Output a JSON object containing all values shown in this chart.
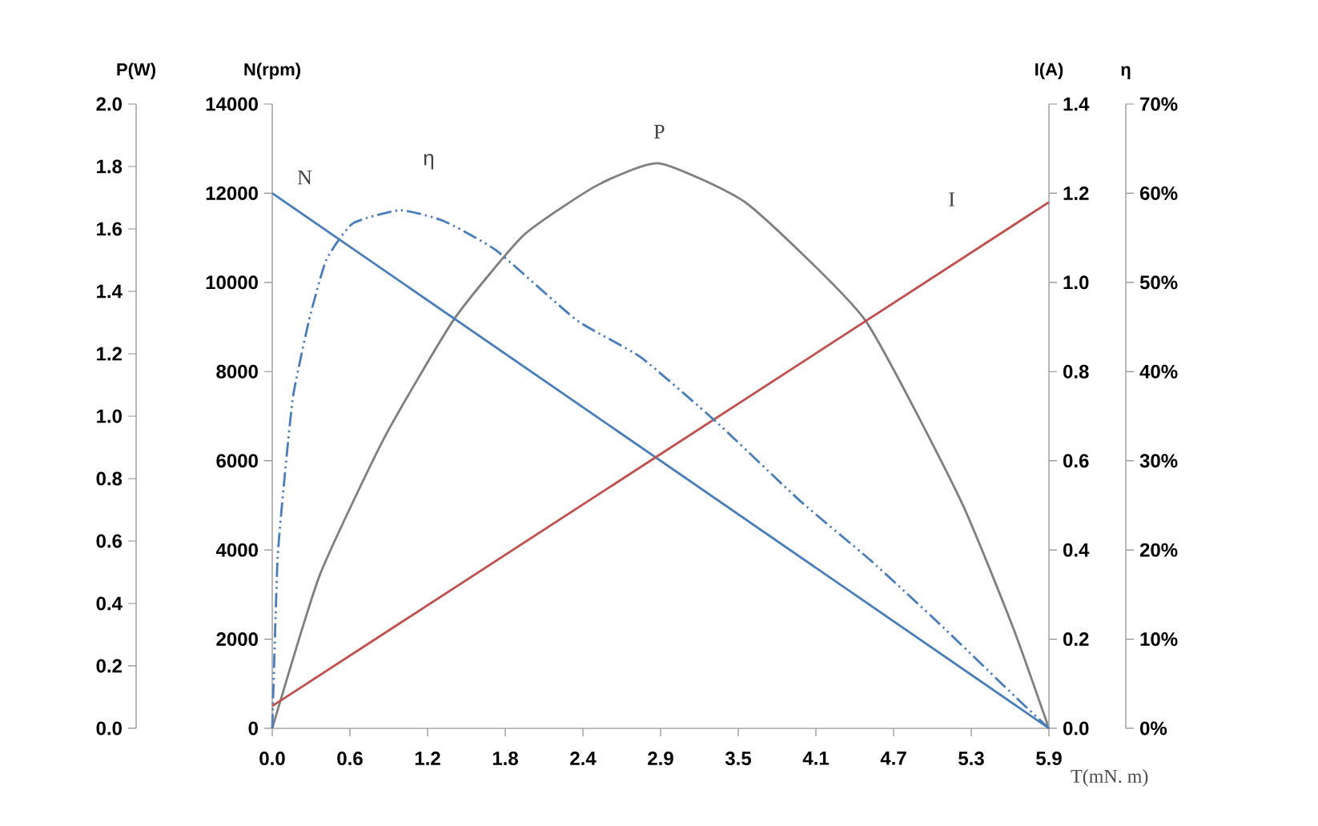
{
  "chart_data": [
    {
      "type": "line",
      "xlabel": "T(mN. m)",
      "ylabel": "P(W)",
      "y2label": "N(rpm)",
      "xlim": [
        0,
        5.9
      ],
      "xticks": [
        {
          "value": 0,
          "label": "0.0"
        },
        {
          "value": 0.59,
          "label": "0.6"
        },
        {
          "value": 1.18,
          "label": "1.2"
        },
        {
          "value": 1.77,
          "label": "1.8"
        },
        {
          "value": 2.36,
          "label": "2.4"
        },
        {
          "value": 2.95,
          "label": "2.9"
        },
        {
          "value": 3.54,
          "label": "3.5"
        },
        {
          "value": 4.13,
          "label": "4.1"
        },
        {
          "value": 4.72,
          "label": "4.7"
        },
        {
          "value": 5.31,
          "label": "5.3"
        },
        {
          "value": 5.9,
          "label": "5.9"
        }
      ],
      "ylim": [
        0,
        2.0
      ],
      "yticks": [
        {
          "value": 0,
          "label": "0.0"
        },
        0.2,
        0.4,
        0.6,
        0.8,
        {
          "value": 1.0,
          "label": "1.0"
        },
        1.2,
        1.4,
        1.6,
        1.8,
        {
          "value": 2.0,
          "label": "2.0"
        }
      ],
      "y2lim": [
        0,
        14000
      ],
      "y2ticks": [
        0,
        2000,
        4000,
        6000,
        8000,
        10000,
        12000,
        14000
      ],
      "series": [
        {
          "name": "N",
          "color": "#4a7ebb",
          "axis": "y2",
          "x": [
            0,
            5.9
          ],
          "values": [
            12000,
            0
          ]
        },
        {
          "name": "P",
          "color": "#7f7f7f",
          "x": [
            0,
            0.36,
            0.85,
            1.38,
            1.91,
            2.47,
            2.94,
            3.61,
            4.5,
            5.23,
            5.63,
            5.9
          ],
          "values": [
            0,
            0.49,
            0.93,
            1.31,
            1.58,
            1.74,
            1.81,
            1.68,
            1.31,
            0.73,
            0.32,
            0
          ]
        }
      ]
    },
    {
      "type": "line",
      "tick_labels": "y",
      "ylabel": "I(A)",
      "y2label": "η",
      "xlim": [
        0,
        5.9
      ],
      "ylim": [
        0,
        1.4
      ],
      "yticks": [
        {
          "value": 0,
          "label": "0.0"
        },
        0.2,
        0.4,
        0.6,
        0.8,
        {
          "value": 1.0,
          "label": "1.0"
        },
        1.2,
        1.4
      ],
      "y2lim": [
        0,
        70
      ],
      "y2ticks": [
        {
          "value": 0,
          "label": "0%"
        },
        {
          "value": 10,
          "label": "10%"
        },
        {
          "value": 20,
          "label": "20%"
        },
        {
          "value": 30,
          "label": "30%"
        },
        {
          "value": 40,
          "label": "40%"
        },
        {
          "value": 50,
          "label": "50%"
        },
        {
          "value": 60,
          "label": "60%"
        },
        {
          "value": 70,
          "label": "70%"
        }
      ],
      "series": [
        {
          "name": "η",
          "color": "#4a7ebb",
          "axis": "y2",
          "line_style": "dashed",
          "x": [
            0,
            0.04,
            0.1,
            0.16,
            0.28,
            0.41,
            0.61,
            0.97,
            1.3,
            1.7,
            2.31,
            2.8,
            3.37,
            4.01,
            4.54,
            5.07,
            5.64,
            5.9
          ],
          "values": [
            0,
            18.9,
            29.1,
            37.4,
            45.8,
            52.5,
            56.6,
            58.1,
            56.9,
            53.6,
            45.8,
            41.6,
            34.4,
            25.5,
            18.9,
            11.7,
            3.6,
            0
          ]
        },
        {
          "name": "I",
          "color": "#c0504d",
          "x": [
            0,
            5.9
          ],
          "values": [
            0.05,
            1.18
          ]
        }
      ]
    }
  ]
}
